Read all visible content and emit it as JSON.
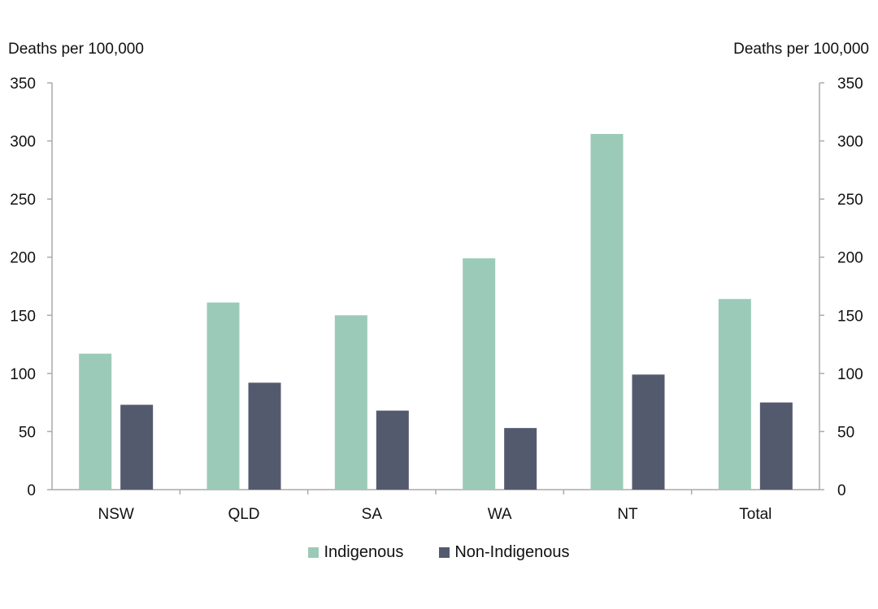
{
  "chart_data": {
    "type": "bar",
    "categories": [
      "NSW",
      "QLD",
      "SA",
      "WA",
      "NT",
      "Total"
    ],
    "series": [
      {
        "name": "Indigenous",
        "values": [
          117,
          161,
          150,
          199,
          306,
          164
        ],
        "color": "#9ccab8"
      },
      {
        "name": "Non-Indigenous",
        "values": [
          73,
          92,
          68,
          53,
          99,
          75
        ],
        "color": "#545a6e"
      }
    ],
    "ylabel_left": "Deaths per 100,000",
    "ylabel_right": "Deaths per 100,000",
    "ylim": [
      0,
      350
    ],
    "yticks": [
      0,
      50,
      100,
      150,
      200,
      250,
      300,
      350
    ],
    "grid": false,
    "legend_position": "bottom-center",
    "axis_color": "#aaaaaa"
  }
}
